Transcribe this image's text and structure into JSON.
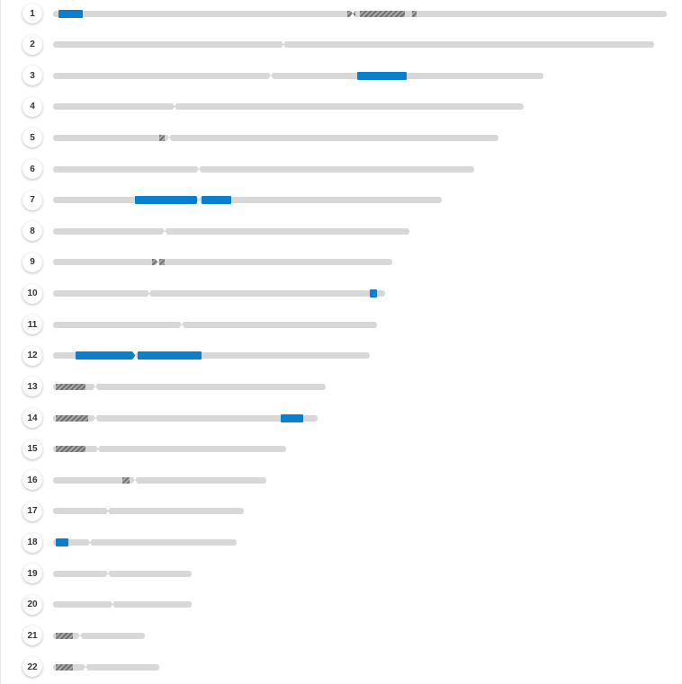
{
  "chart_data": {
    "type": "ideogram",
    "title": "",
    "max_length_mb": 248,
    "colors": {
      "bar": "#d8d8d8",
      "highlight": "#0a7fcc",
      "hatch": "#707070"
    },
    "chromosomes": [
      {
        "label": "1",
        "length": 248,
        "centromere": 121,
        "highlights": [
          [
            2,
            12
          ]
        ],
        "hatched": [
          [
            119,
            122
          ],
          [
            124,
            142
          ],
          [
            145,
            147
          ]
        ]
      },
      {
        "label": "2",
        "length": 243,
        "centromere": 93,
        "highlights": [],
        "hatched": []
      },
      {
        "label": "3",
        "length": 198,
        "centromere": 88,
        "highlights": [
          [
            123,
            143
          ]
        ],
        "hatched": []
      },
      {
        "label": "4",
        "length": 190,
        "centromere": 49,
        "highlights": [],
        "hatched": []
      },
      {
        "label": "5",
        "length": 180,
        "centromere": 47,
        "highlights": [],
        "hatched": [
          [
            43,
            45
          ]
        ]
      },
      {
        "label": "6",
        "length": 170,
        "centromere": 59,
        "highlights": [],
        "hatched": []
      },
      {
        "label": "7",
        "length": 157,
        "centromere": 59,
        "highlights": [
          [
            33,
            58
          ],
          [
            60,
            72
          ]
        ],
        "hatched": []
      },
      {
        "label": "8",
        "length": 144,
        "centromere": 45,
        "highlights": [],
        "hatched": []
      },
      {
        "label": "9",
        "length": 137,
        "centromere": 42,
        "highlights": [],
        "hatched": [
          [
            40,
            42
          ],
          [
            43,
            45
          ]
        ]
      },
      {
        "label": "10",
        "length": 134,
        "centromere": 39,
        "highlights": [
          [
            128,
            131
          ]
        ],
        "hatched": []
      },
      {
        "label": "11",
        "length": 131,
        "centromere": 52,
        "highlights": [],
        "hatched": []
      },
      {
        "label": "12",
        "length": 128,
        "centromere": 33,
        "highlights": [
          [
            9,
            33
          ],
          [
            34,
            60
          ]
        ],
        "hatched": []
      },
      {
        "label": "13",
        "length": 110,
        "centromere": 17,
        "highlights": [],
        "hatched": [
          [
            1,
            13
          ]
        ]
      },
      {
        "label": "14",
        "length": 107,
        "centromere": 17,
        "highlights": [
          [
            92,
            101
          ]
        ],
        "hatched": [
          [
            1,
            14
          ]
        ]
      },
      {
        "label": "15",
        "length": 94,
        "centromere": 18,
        "highlights": [],
        "hatched": [
          [
            1,
            13
          ]
        ]
      },
      {
        "label": "16",
        "length": 86,
        "centromere": 33,
        "highlights": [],
        "hatched": [
          [
            28,
            31
          ]
        ]
      },
      {
        "label": "17",
        "length": 77,
        "centromere": 22,
        "highlights": [],
        "hatched": []
      },
      {
        "label": "18",
        "length": 74,
        "centromere": 15,
        "highlights": [
          [
            1,
            6
          ]
        ],
        "hatched": []
      },
      {
        "label": "19",
        "length": 56,
        "centromere": 22,
        "highlights": [],
        "hatched": []
      },
      {
        "label": "20",
        "length": 56,
        "centromere": 24,
        "highlights": [],
        "hatched": []
      },
      {
        "label": "21",
        "length": 37,
        "centromere": 11,
        "highlights": [],
        "hatched": [
          [
            1,
            8
          ]
        ]
      },
      {
        "label": "22",
        "length": 43,
        "centromere": 13,
        "highlights": [],
        "hatched": [
          [
            1,
            8
          ]
        ]
      }
    ]
  }
}
